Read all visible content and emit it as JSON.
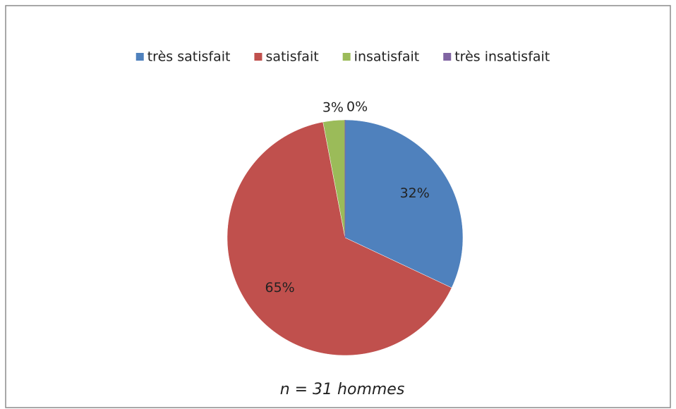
{
  "chart_data": {
    "type": "pie",
    "categories": [
      "très satisfait",
      "satisfait",
      "insatisfait",
      "très insatisfait"
    ],
    "values": [
      32,
      65,
      3,
      0
    ],
    "value_labels": [
      "32%",
      "65%",
      "3%",
      "0%"
    ],
    "colors": [
      "#4f81bd",
      "#c0504d",
      "#9bbb59",
      "#8064a2"
    ],
    "legend": "top",
    "annotation": "n = 31 hommes"
  }
}
